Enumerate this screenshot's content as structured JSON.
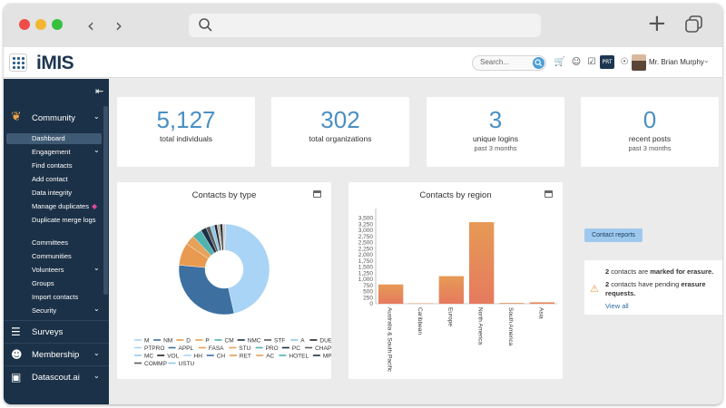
{
  "app": {
    "logo": "iMIS"
  },
  "topbar": {
    "search_placeholder": "Search...",
    "dark_icon_text": "PRT",
    "user_name": "Mr. Brian Murphy"
  },
  "sidebar": {
    "community_label": "Community",
    "items": [
      {
        "label": "Dashboard",
        "active": true
      },
      {
        "label": "Engagement",
        "caret": true
      },
      {
        "label": "Find contacts"
      },
      {
        "label": "Add contact"
      },
      {
        "label": "Data integrity"
      },
      {
        "label": "Manage duplicates"
      },
      {
        "label": "Duplicate merge logs"
      },
      {
        "label": "Committees"
      },
      {
        "label": "Communities"
      },
      {
        "label": "Volunteers",
        "caret": true
      },
      {
        "label": "Groups"
      },
      {
        "label": "Import contacts"
      },
      {
        "label": "Security",
        "caret": true
      }
    ],
    "sections": [
      {
        "label": "Surveys",
        "icon": "document-icon"
      },
      {
        "label": "Membership",
        "icon": "people-icon"
      },
      {
        "label": "Datascout.ai",
        "icon": "robot-icon"
      }
    ]
  },
  "stats": [
    {
      "value": "5,127",
      "label": "total individuals",
      "sub": ""
    },
    {
      "value": "302",
      "label": "total organizations",
      "sub": ""
    },
    {
      "value": "3",
      "label": "unique logins",
      "sub": "past 3 months"
    },
    {
      "value": "0",
      "label": "recent posts",
      "sub": "past 3 months"
    }
  ],
  "colors": {
    "accent": "#4a8fc2",
    "sidebar": "#1b3147",
    "warning": "#e39b3b"
  },
  "chart_data": [
    {
      "type": "pie",
      "title": "Contacts by type",
      "donut": true,
      "legend": [
        "M",
        "NM",
        "D",
        "P",
        "CM",
        "NMC",
        "STF",
        "A",
        "DUES",
        "PTPRO",
        "APPL",
        "FASA",
        "STU",
        "PRO",
        "PC",
        "CHAPT",
        "MC",
        "VOL",
        "HH",
        "CH",
        "RET",
        "AC",
        "HOTEL",
        "MP",
        "COMMP",
        "USTU"
      ],
      "legend_colors": [
        "#a9d4f5",
        "#3d6fa0",
        "#e89a50",
        "#e6a25a",
        "#4fb3b0",
        "#1d2f44",
        "#5a5a5a",
        "#8fc9e8",
        "#222222",
        "#a9d4f5",
        "#3d6fa0",
        "#e89a50",
        "#e6a25a",
        "#4fb3b0",
        "#1d2f44",
        "#5a5a5a",
        "#8fc9e8",
        "#222222",
        "#a9d4f5",
        "#3d6fa0",
        "#e89a50",
        "#e6a25a",
        "#4fb3b0",
        "#1d2f44",
        "#5a5a5a",
        "#8fc9e8"
      ],
      "slices": [
        {
          "name": "M",
          "value": 46.0,
          "color": "#a9d4f5"
        },
        {
          "name": "NM",
          "value": 30.0,
          "color": "#3d6fa0"
        },
        {
          "name": "D",
          "value": 8.0,
          "color": "#e89a50"
        },
        {
          "name": "P",
          "value": 3.5,
          "color": "#e6a25a"
        },
        {
          "name": "CM",
          "value": 3.5,
          "color": "#4fb3b0"
        },
        {
          "name": "NMC",
          "value": 2.0,
          "color": "#1d2f44"
        },
        {
          "name": "STF",
          "value": 1.5,
          "color": "#5a5a5a"
        },
        {
          "name": "A",
          "value": 1.5,
          "color": "#8fc9e8"
        },
        {
          "name": "DUES",
          "value": 1.0,
          "color": "#222222"
        },
        {
          "name": "PTPRO",
          "value": 1.0,
          "color": "#b6b6b6"
        },
        {
          "name": "APPL",
          "value": 1.0,
          "color": "#2e2e2e"
        },
        {
          "name": "FASA",
          "value": 1.0,
          "color": "#cccccc"
        }
      ]
    },
    {
      "type": "bar",
      "title": "Contacts by region",
      "categories": [
        "Australia & South Pacific",
        "Caribbean",
        "Europe",
        "North America",
        "South America",
        "Asia"
      ],
      "values": [
        790,
        15,
        1130,
        3340,
        30,
        60
      ],
      "ylim": [
        0,
        3750
      ],
      "yticks": [
        0,
        250,
        500,
        750,
        1000,
        1250,
        1500,
        1750,
        2000,
        2250,
        2500,
        2750,
        3000,
        3250,
        3500
      ],
      "ytick_labels": [
        "0",
        "250",
        "500",
        "750",
        "1,000",
        "1,250",
        "1,500",
        "1,750",
        "2,000",
        "2,250",
        "2,500",
        "2,750",
        "3,000",
        "3,250",
        "3,500"
      ],
      "bar_color_top": "#e79a55",
      "bar_color_bottom": "#e57a5f"
    }
  ],
  "actions": {
    "contact_reports": "Contact reports"
  },
  "notice": {
    "line1_count": "2",
    "line1_text": " contacts are ",
    "line1_bold": "marked for erasure.",
    "line2_count": "2",
    "line2_text": " contacts have pending ",
    "line2_bold": "erasure requests.",
    "link": "View all"
  }
}
